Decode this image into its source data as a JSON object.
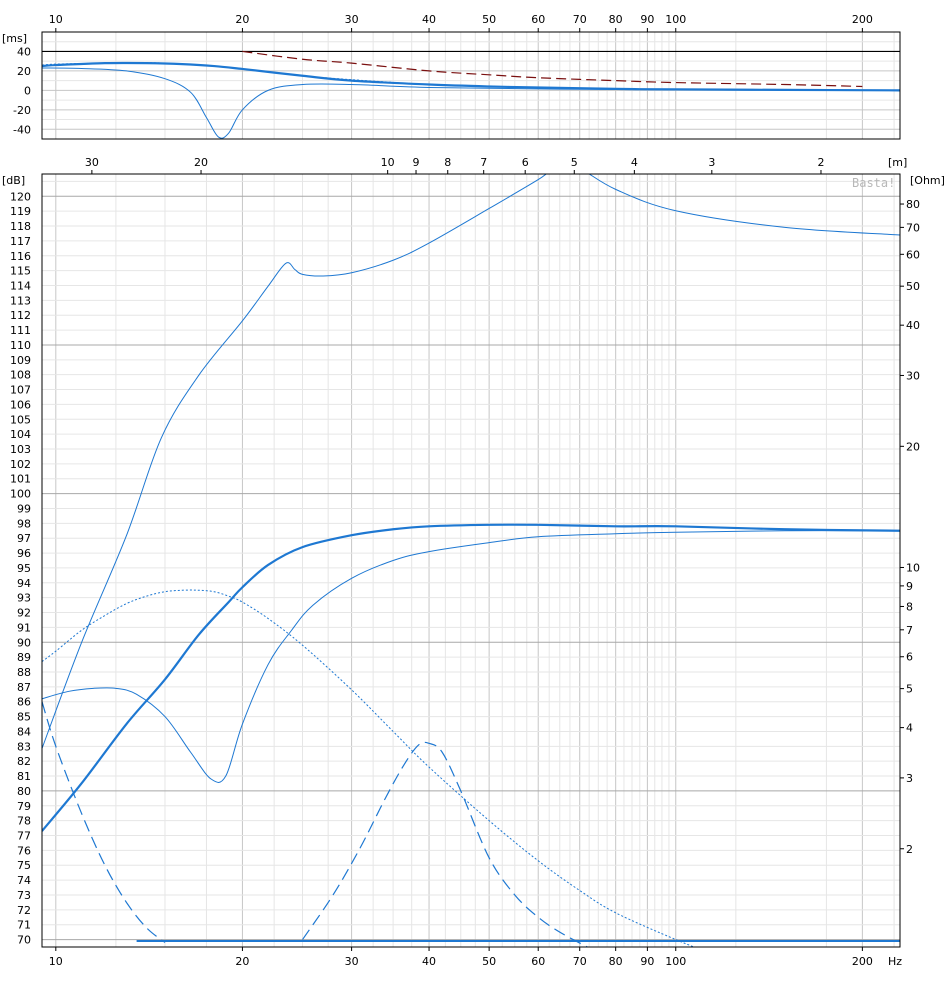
{
  "colors": {
    "curve": "#1e78d2",
    "group_delay_limit": "#7a1010",
    "grid_major": "#c6c6c6",
    "grid_minor": "#e6e6e6",
    "frame": "#000000"
  },
  "watermark": "Basta!",
  "chart_data": [
    {
      "type": "line",
      "id": "group-delay",
      "ylabel": "[ms]",
      "x_scale": "log",
      "xlim": [
        9.5,
        230
      ],
      "ylim": [
        -50,
        60
      ],
      "y_ticks": [
        {
          "v": 40,
          "t": "40"
        },
        {
          "v": 20,
          "t": "20"
        },
        {
          "v": 0,
          "t": "0"
        },
        {
          "v": -20,
          "t": "-20"
        },
        {
          "v": -40,
          "t": "-40"
        }
      ],
      "x_ticks": [
        {
          "v": 10,
          "t": "10"
        },
        {
          "v": 20,
          "t": "20"
        },
        {
          "v": 30,
          "t": "30"
        },
        {
          "v": 40,
          "t": "40"
        },
        {
          "v": 50,
          "t": "50"
        },
        {
          "v": 60,
          "t": "60"
        },
        {
          "v": 70,
          "t": "70"
        },
        {
          "v": 80,
          "t": "80"
        },
        {
          "v": 90,
          "t": "90"
        },
        {
          "v": 100,
          "t": "100"
        },
        {
          "v": 200,
          "t": "200"
        }
      ],
      "reference_line": 40,
      "series": [
        {
          "style": "thick",
          "x": [
            9.5,
            10,
            12,
            14,
            16,
            18,
            20,
            25,
            30,
            40,
            50,
            60,
            80,
            100,
            150,
            230
          ],
          "y": [
            25,
            26,
            28,
            28,
            27,
            25,
            22,
            15,
            10,
            6,
            4,
            3,
            1.5,
            1,
            0.5,
            0
          ]
        },
        {
          "style": "dotted",
          "x": [
            9.5,
            10,
            12,
            14,
            16,
            18,
            20,
            25,
            30,
            40,
            50,
            60,
            80,
            100,
            150,
            230
          ],
          "y": [
            26,
            27,
            28,
            28.5,
            27,
            25,
            22,
            15,
            11,
            6,
            4,
            3,
            1.5,
            1,
            0.5,
            0
          ]
        },
        {
          "style": "thin",
          "x": [
            9.5,
            11,
            13,
            15,
            16.5,
            17.5,
            18.3,
            19,
            20,
            22,
            25,
            30,
            40,
            60,
            100,
            230
          ],
          "y": [
            23,
            22.5,
            20,
            12,
            -2,
            -28,
            -48,
            -44,
            -20,
            0,
            6,
            6,
            3,
            1.5,
            0.5,
            0
          ]
        },
        {
          "style": "dash_dark",
          "x": [
            20,
            25,
            30,
            40,
            50,
            60,
            80,
            100,
            150,
            200
          ],
          "y": [
            40,
            32,
            28,
            20,
            16,
            13,
            10,
            8,
            6,
            4
          ]
        }
      ]
    },
    {
      "type": "line",
      "id": "spl-impedance",
      "ylabel": "[dB]",
      "y2label": "[Ohm]",
      "top_axis_unit": "[m]",
      "xlabel": "Hz",
      "x_scale": "log",
      "xlim": [
        9.5,
        230
      ],
      "ylim": [
        69.5,
        121.5
      ],
      "y2_scale": "log",
      "y2lim": [
        1.14,
        95
      ],
      "y_ticks": [
        120,
        119,
        118,
        117,
        116,
        115,
        114,
        113,
        112,
        111,
        110,
        109,
        108,
        107,
        106,
        105,
        104,
        103,
        102,
        101,
        100,
        99,
        98,
        97,
        96,
        95,
        94,
        93,
        92,
        91,
        90,
        89,
        88,
        87,
        86,
        85,
        84,
        83,
        82,
        81,
        80,
        79,
        78,
        77,
        76,
        75,
        74,
        73,
        72,
        71,
        70
      ],
      "y2_ticks": [
        {
          "v": 80,
          "t": "80"
        },
        {
          "v": 70,
          "t": "70"
        },
        {
          "v": 60,
          "t": "60"
        },
        {
          "v": 50,
          "t": "50"
        },
        {
          "v": 40,
          "t": "40"
        },
        {
          "v": 30,
          "t": "30"
        },
        {
          "v": 20,
          "t": "20"
        },
        {
          "v": 10,
          "t": "10"
        },
        {
          "v": 9,
          "t": "9"
        },
        {
          "v": 8,
          "t": "8"
        },
        {
          "v": 7,
          "t": "7"
        },
        {
          "v": 6,
          "t": "6"
        },
        {
          "v": 5,
          "t": "5"
        },
        {
          "v": 4,
          "t": "4"
        },
        {
          "v": 3,
          "t": "3"
        },
        {
          "v": 2,
          "t": "2"
        }
      ],
      "x_ticks": [
        {
          "v": 10,
          "t": "10"
        },
        {
          "v": 20,
          "t": "20"
        },
        {
          "v": 30,
          "t": "30"
        },
        {
          "v": 40,
          "t": "40"
        },
        {
          "v": 50,
          "t": "50"
        },
        {
          "v": 60,
          "t": "60"
        },
        {
          "v": 70,
          "t": "70"
        },
        {
          "v": 80,
          "t": "80"
        },
        {
          "v": 90,
          "t": "90"
        },
        {
          "v": 100,
          "t": "100"
        },
        {
          "v": 200,
          "t": "200"
        }
      ],
      "wavelength_ticks": [
        {
          "v": 30,
          "t": "30"
        },
        {
          "v": 20,
          "t": "20"
        },
        {
          "v": 10,
          "t": "10"
        },
        {
          "v": 9,
          "t": "9"
        },
        {
          "v": 8,
          "t": "8"
        },
        {
          "v": 7,
          "t": "7"
        },
        {
          "v": 6,
          "t": "6"
        },
        {
          "v": 5,
          "t": "5"
        },
        {
          "v": 4,
          "t": "4"
        },
        {
          "v": 3,
          "t": "3"
        },
        {
          "v": 2,
          "t": "2"
        }
      ],
      "series": [
        {
          "style": "thick",
          "axis": "left",
          "x": [
            9.5,
            11,
            13,
            15,
            17,
            19,
            20,
            22,
            25,
            30,
            35,
            40,
            50,
            60,
            80,
            100,
            150,
            230
          ],
          "y": [
            77.3,
            80.5,
            84.5,
            87.5,
            90.5,
            92.7,
            93.7,
            95.2,
            96.4,
            97.2,
            97.6,
            97.8,
            97.9,
            97.9,
            97.8,
            97.8,
            97.6,
            97.5
          ]
        },
        {
          "style": "thin",
          "axis": "left",
          "x": [
            9.5,
            10.5,
            11.5,
            12.5,
            13.5,
            15,
            16.5,
            17.8,
            18.8,
            20,
            22,
            24,
            26,
            30,
            35,
            40,
            50,
            60,
            80,
            100,
            150,
            230
          ],
          "y": [
            86.2,
            86.7,
            86.9,
            86.9,
            86.5,
            85,
            82.6,
            80.8,
            81,
            84.5,
            88.5,
            90.8,
            92.5,
            94.3,
            95.5,
            96.1,
            96.7,
            97.1,
            97.3,
            97.4,
            97.5,
            97.5
          ]
        },
        {
          "style": "dotted",
          "axis": "left",
          "x": [
            9.5,
            10,
            11,
            12,
            13,
            14,
            15,
            16,
            17,
            18,
            19,
            20,
            22,
            25,
            30,
            35,
            40,
            50,
            60,
            70,
            80,
            100,
            115
          ],
          "y": [
            88.7,
            89.4,
            90.8,
            91.8,
            92.6,
            93.1,
            93.4,
            93.5,
            93.5,
            93.4,
            93.1,
            92.7,
            91.6,
            89.8,
            86.8,
            84,
            81.6,
            78,
            75.3,
            73.3,
            71.8,
            70,
            69
          ]
        },
        {
          "style": "dashed",
          "axis": "left",
          "x": [
            9.5,
            10,
            11,
            12,
            13,
            14,
            15
          ],
          "y": [
            86,
            83,
            78.5,
            75,
            72.5,
            70.8,
            69.8
          ]
        },
        {
          "style": "dashed",
          "axis": "left",
          "x": [
            25,
            28,
            31,
            34,
            36.5,
            38.5,
            40,
            42,
            45,
            50,
            55,
            60,
            65,
            72
          ],
          "y": [
            70,
            73,
            76.2,
            79.5,
            81.8,
            83.1,
            83.2,
            82.6,
            80,
            75.5,
            73,
            71.5,
            70.5,
            69.5
          ]
        },
        {
          "style": "flat",
          "axis": "left",
          "x": [
            13.5,
            230
          ],
          "y": [
            69.9,
            69.9
          ]
        },
        {
          "style": "thin",
          "axis": "right",
          "x": [
            9.5,
            11,
            13,
            14.8,
            17,
            20,
            22,
            23.5,
            24.3,
            25,
            27,
            30,
            35,
            40,
            50,
            60,
            65,
            70,
            80,
            100,
            150,
            230
          ],
          "y": [
            3.55,
            6.5,
            12,
            21,
            30,
            41,
            50,
            57,
            55,
            53.5,
            53,
            54,
            58,
            64,
            78,
            92,
            100,
            98,
            87,
            77,
            70,
            67
          ]
        }
      ]
    }
  ]
}
